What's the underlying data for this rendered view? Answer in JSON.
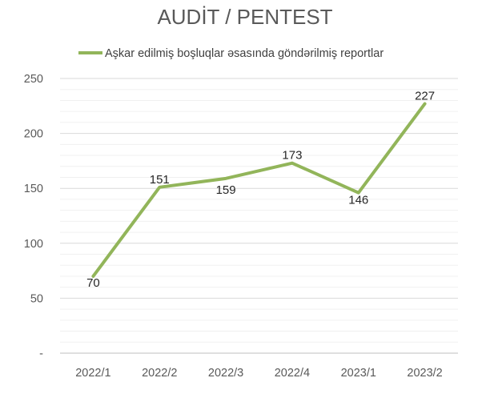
{
  "chart_data": {
    "type": "line",
    "title": "AUDİT / PENTEST",
    "xlabel": "",
    "ylabel": "",
    "categories": [
      "2022/1",
      "2022/2",
      "2022/3",
      "2022/4",
      "2023/1",
      "2023/2"
    ],
    "series": [
      {
        "name": "Aşkar edilmiş boşluqlar əsasında göndərilmiş reportlar",
        "values": [
          70,
          151,
          159,
          173,
          146,
          227
        ],
        "color": "#92b55a"
      }
    ],
    "ylim": [
      0,
      250
    ],
    "yticks": [
      {
        "value": 0,
        "label": "-"
      },
      {
        "value": 50,
        "label": "50"
      },
      {
        "value": 100,
        "label": "100"
      },
      {
        "value": 150,
        "label": "150"
      },
      {
        "value": 200,
        "label": "200"
      },
      {
        "value": 250,
        "label": "250"
      }
    ],
    "grid": true,
    "minor_grid": true,
    "legend_position": "top",
    "data_labels": true
  }
}
